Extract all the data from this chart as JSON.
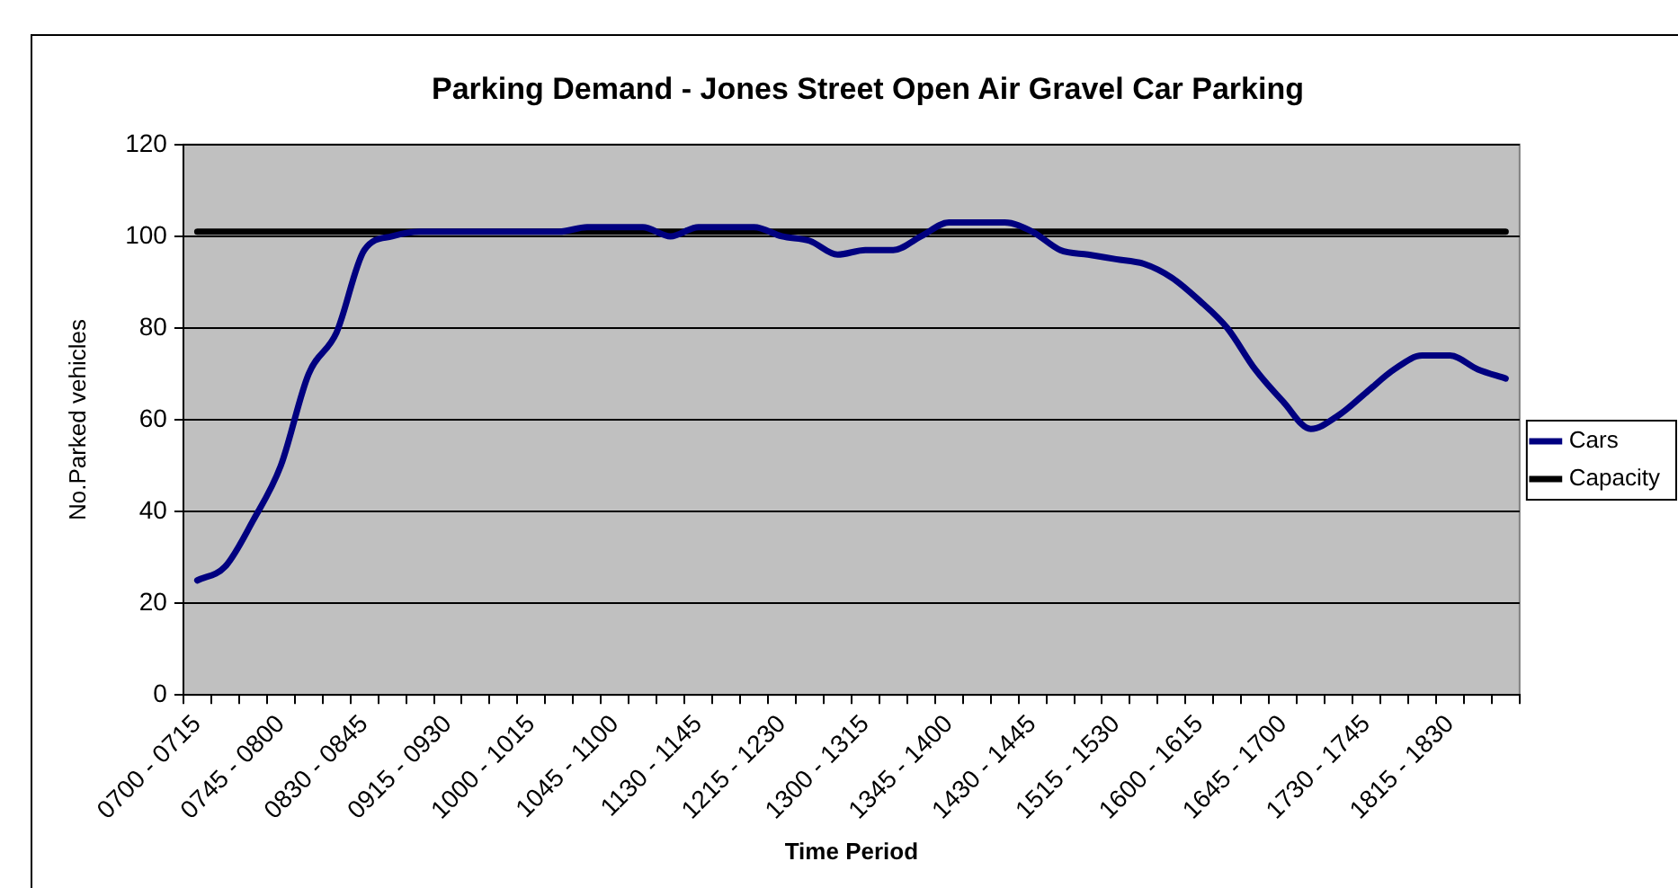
{
  "chart_data": {
    "type": "line",
    "title": "Parking Demand - Jones Street Open Air Gravel Car Parking",
    "xlabel": "Time Period",
    "ylabel": "No.Parked vehicles",
    "categories": [
      "0700 - 0715",
      null,
      null,
      "0745 - 0800",
      null,
      null,
      "0830 - 0845",
      null,
      null,
      "0915 - 0930",
      null,
      null,
      "1000 - 1015",
      null,
      null,
      "1045 - 1100",
      null,
      null,
      "1130 - 1145",
      null,
      null,
      "1215 - 1230",
      null,
      null,
      "1300 - 1315",
      null,
      null,
      "1345 - 1400",
      null,
      null,
      "1430 - 1445",
      null,
      null,
      "1515 - 1530",
      null,
      null,
      "1600 - 1615",
      null,
      null,
      "1645 - 1700",
      null,
      null,
      "1730 - 1745",
      null,
      null,
      "1815 - 1830",
      null,
      null
    ],
    "series": [
      {
        "name": "Cars",
        "color": "#000080",
        "values": [
          25,
          28,
          38,
          50,
          70,
          79,
          97,
          100,
          101,
          101,
          101,
          101,
          101,
          101,
          102,
          102,
          102,
          100,
          102,
          102,
          102,
          100,
          99,
          96,
          97,
          97,
          100,
          103,
          103,
          103,
          101,
          97,
          96,
          95,
          94,
          91,
          86,
          80,
          71,
          64,
          58,
          61,
          66,
          71,
          74,
          74,
          71,
          69
        ]
      },
      {
        "name": "Capacity",
        "color": "#000000",
        "values": [
          101,
          101,
          101,
          101,
          101,
          101,
          101,
          101,
          101,
          101,
          101,
          101,
          101,
          101,
          101,
          101,
          101,
          101,
          101,
          101,
          101,
          101,
          101,
          101,
          101,
          101,
          101,
          101,
          101,
          101,
          101,
          101,
          101,
          101,
          101,
          101,
          101,
          101,
          101,
          101,
          101,
          101,
          101,
          101,
          101,
          101,
          101,
          101
        ]
      }
    ],
    "ylim": [
      0,
      120
    ],
    "yticks": [
      0,
      20,
      40,
      60,
      80,
      100,
      120
    ],
    "grid": "y",
    "legend": "right",
    "marker": "none",
    "line_style": "solid"
  }
}
